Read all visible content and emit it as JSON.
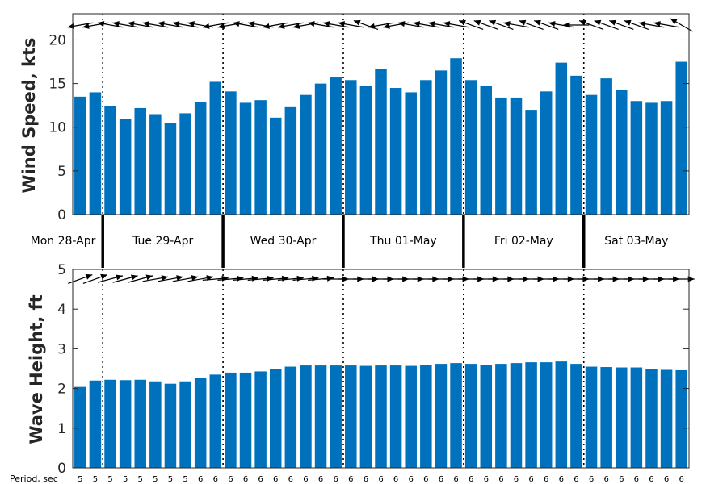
{
  "chart_data": [
    {
      "type": "bar",
      "ylabel": "Wind Speed, kts",
      "ylim": [
        0,
        23
      ],
      "yticks": [
        0,
        5,
        10,
        15,
        20
      ],
      "bar_color": "#0072BD",
      "values": [
        13.5,
        14.0,
        12.4,
        10.9,
        12.2,
        11.5,
        10.5,
        11.6,
        12.9,
        15.2,
        14.1,
        12.8,
        13.1,
        11.1,
        12.3,
        13.7,
        15.0,
        15.7,
        15.4,
        14.7,
        16.7,
        14.5,
        14.0,
        15.4,
        16.5,
        17.9,
        15.4,
        14.7,
        13.4,
        13.4,
        12.0,
        14.1,
        17.4,
        15.9,
        13.7,
        15.6,
        14.3,
        13.0,
        12.8,
        13.0,
        17.5
      ],
      "arrow_direction_deg": [
        190,
        190,
        170,
        170,
        170,
        170,
        170,
        170,
        170,
        190,
        190,
        170,
        170,
        190,
        190,
        190,
        170,
        170,
        170,
        160,
        190,
        190,
        170,
        170,
        170,
        170,
        160,
        160,
        160,
        170,
        160,
        160,
        170,
        180,
        160,
        160,
        160,
        160,
        170,
        170,
        150
      ]
    },
    {
      "type": "bar",
      "ylabel": "Wave Height, ft",
      "xlabel": "Period, sec",
      "ylim": [
        0,
        5
      ],
      "yticks": [
        0,
        1,
        2,
        3,
        4,
        5
      ],
      "bar_color": "#0072BD",
      "values": [
        2.04,
        2.2,
        2.22,
        2.21,
        2.22,
        2.18,
        2.12,
        2.18,
        2.26,
        2.35,
        2.4,
        2.4,
        2.43,
        2.48,
        2.55,
        2.58,
        2.58,
        2.58,
        2.58,
        2.57,
        2.58,
        2.58,
        2.57,
        2.6,
        2.62,
        2.64,
        2.62,
        2.6,
        2.62,
        2.64,
        2.66,
        2.66,
        2.68,
        2.62,
        2.55,
        2.54,
        2.53,
        2.53,
        2.5,
        2.47,
        2.46
      ],
      "arrow_direction_deg": [
        20,
        20,
        15,
        15,
        15,
        10,
        10,
        10,
        10,
        5,
        5,
        5,
        5,
        5,
        5,
        5,
        5,
        0,
        0,
        0,
        0,
        0,
        0,
        0,
        0,
        0,
        0,
        0,
        0,
        0,
        0,
        0,
        0,
        0,
        0,
        0,
        0,
        0,
        0,
        0,
        0
      ],
      "period_sec": [
        5,
        5,
        5,
        5,
        5,
        5,
        5,
        5,
        6,
        6,
        6,
        6,
        6,
        6,
        6,
        6,
        6,
        6,
        6,
        6,
        6,
        6,
        6,
        6,
        6,
        6,
        6,
        6,
        6,
        6,
        6,
        6,
        6,
        6,
        6,
        6,
        6,
        6,
        6,
        6,
        6
      ]
    }
  ],
  "days": [
    "Mon 28-Apr",
    "Tue 29-Apr",
    "Wed 30-Apr",
    "Thu 01-May",
    "Fri 02-May",
    "Sat 03-May"
  ],
  "day_start_index": [
    0,
    2,
    10,
    18,
    26,
    34,
    41
  ]
}
